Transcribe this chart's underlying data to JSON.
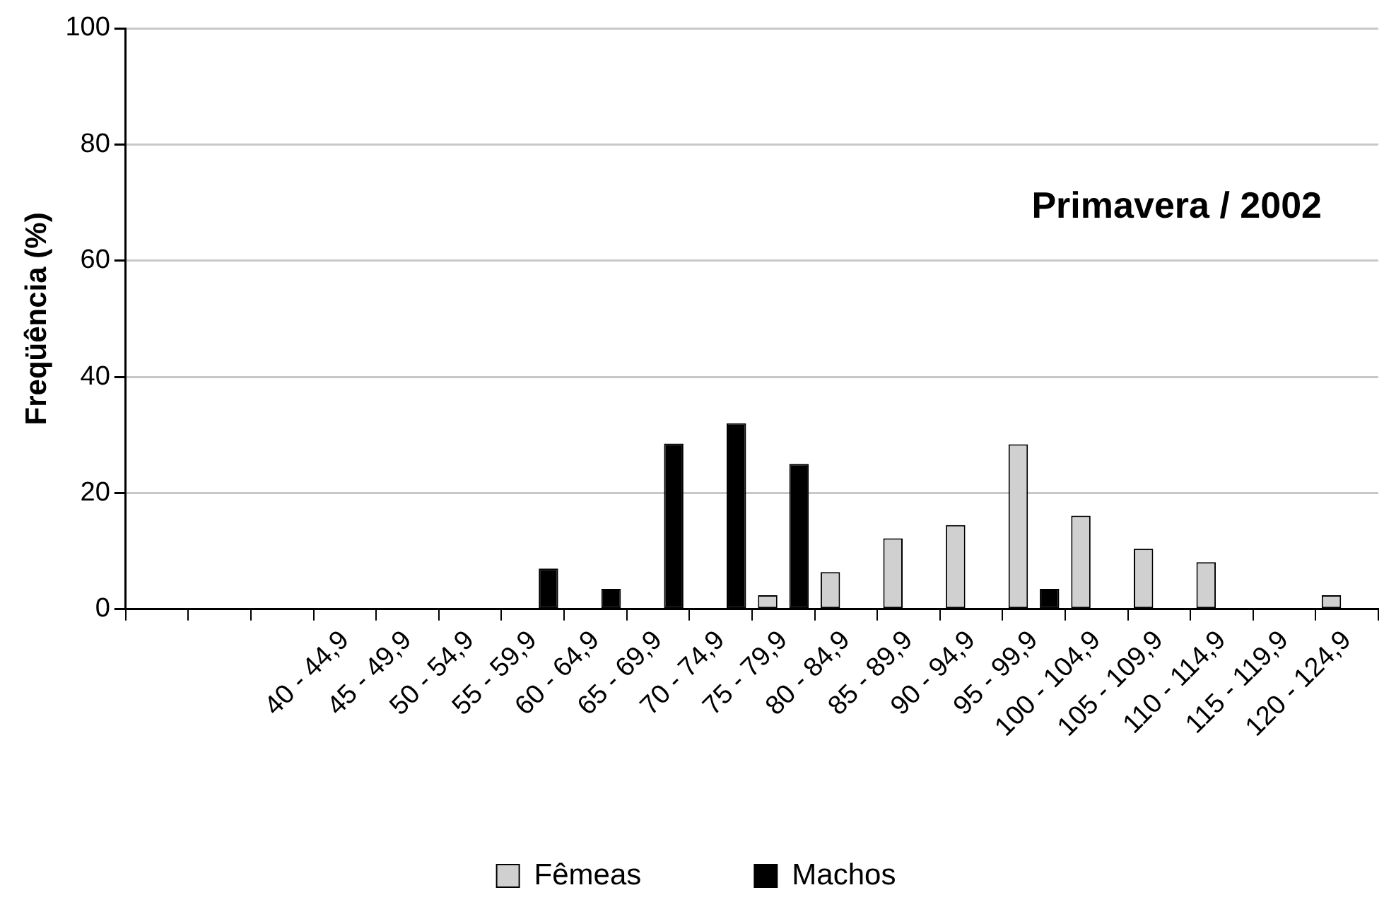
{
  "chart_data": {
    "type": "bar",
    "ylabel": "Freqüência (%)",
    "annotations": [
      "Primavera / 2002"
    ],
    "categories": [
      null,
      null,
      null,
      "40 - 44,9",
      "45 - 49,9",
      "50 - 54,9",
      "55 - 59,9",
      "60 - 64,9",
      "65 - 69,9",
      "70 - 74,9",
      "75 - 79,9",
      "80 - 84,9",
      "85 - 89,9",
      "90 - 94,9",
      "95 - 99,9",
      "100 - 104,9",
      "105 - 109,9",
      "110 - 114,9",
      "115 - 119,9",
      "120 - 124,9"
    ],
    "series": [
      {
        "name": "Fêmeas",
        "color": "#d0d0d0",
        "values": [
          0,
          0,
          0,
          0,
          0,
          0,
          0,
          0,
          0,
          0,
          2.4,
          6.4,
          12.2,
          14.5,
          28.4,
          16.1,
          10.4,
          8.1,
          0,
          2.4
        ]
      },
      {
        "name": "Machos",
        "color": "#000000",
        "values": [
          0,
          0,
          0,
          0,
          0,
          0,
          7,
          3.5,
          28.5,
          32,
          25,
          0,
          0,
          0,
          3.5,
          0,
          0,
          0,
          0,
          0
        ]
      }
    ],
    "ylim": [
      0,
      100
    ],
    "yticks": [
      0,
      20,
      40,
      60,
      80,
      100
    ],
    "grid": "y",
    "legend": "bottom"
  }
}
